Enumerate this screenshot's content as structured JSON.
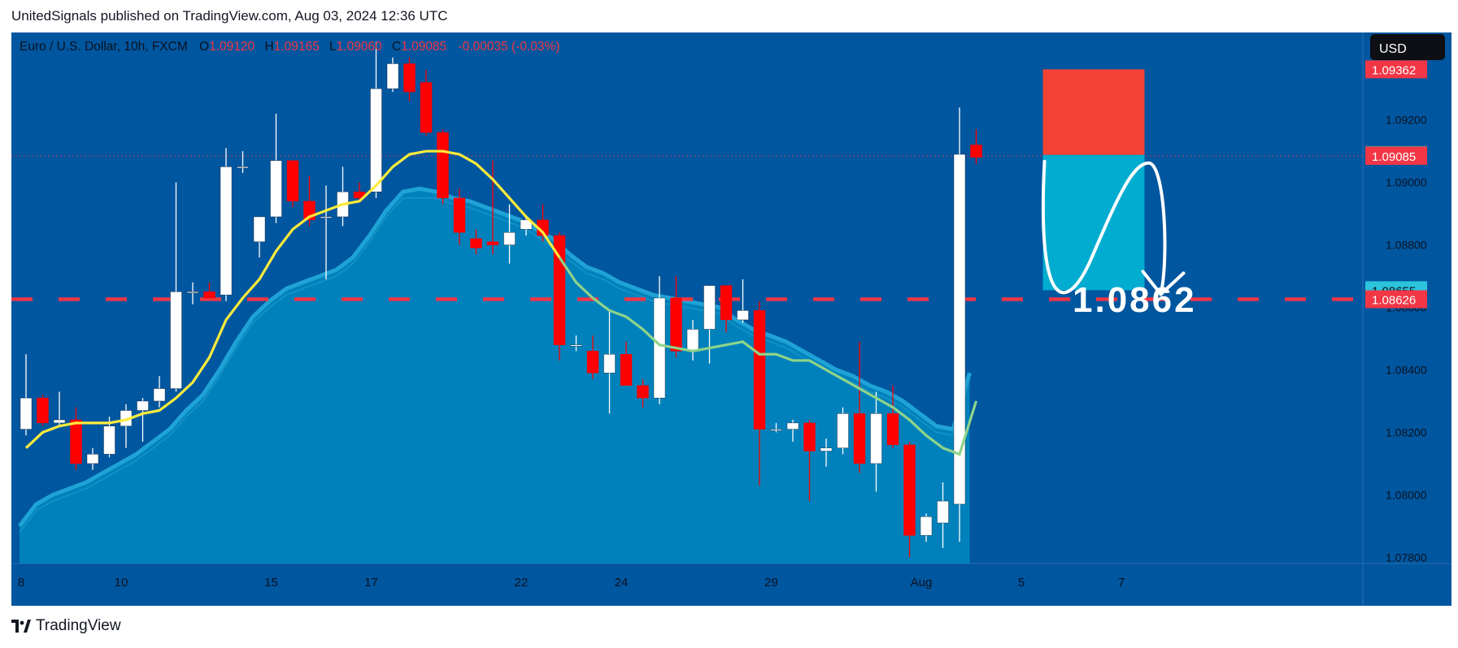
{
  "header": {
    "text": "UnitedSignals published on TradingView.com, Aug 03, 2024 12:36 UTC"
  },
  "footer": {
    "brand": "TradingView"
  },
  "legend": {
    "symbol": "Euro / U.S. Dollar, 10h, FXCM",
    "o_label": "O",
    "o": "1.09120",
    "h_label": "H",
    "h": "1.09165",
    "l_label": "L",
    "l": "1.09060",
    "c_label": "C",
    "c": "1.09085",
    "change": "-0.00035 (-0.03%)"
  },
  "currency_button": "USD",
  "annotation": {
    "target_text": "1.0862"
  },
  "price_tags": [
    {
      "value": "1.09362",
      "price": 1.09362,
      "color": "#f23645"
    },
    {
      "value": "1.09088",
      "price": 1.09088,
      "color": "#787b86"
    },
    {
      "value": "1.09085",
      "price": 1.09085,
      "color": "#f23645"
    },
    {
      "value": "1.08655",
      "price": 1.08655,
      "color": "#2bc4dc"
    },
    {
      "value": "1.08626",
      "price": 1.08626,
      "color": "#f23645"
    }
  ],
  "colors": {
    "background": "#00569f",
    "up_candle": "#ffffff",
    "down_candle": "#ff0000",
    "ema_fast": "#ffeb3b",
    "ema_slow": "#8ed48a",
    "cloud_fill": "#0088c0",
    "cloud_edge": "#1fa3d6",
    "stop_zone": "#f44336",
    "target_zone": "#00acd0",
    "level_line": "#f23645"
  },
  "chart_data": {
    "type": "candlestick",
    "title": "Euro / U.S. Dollar, 10h, FXCM",
    "xlabel": "",
    "ylabel": "",
    "ylim": [
      1.0778,
      1.0948
    ],
    "y_ticks": [
      1.078,
      1.08,
      1.082,
      1.084,
      1.086,
      1.088,
      1.09,
      1.092,
      1.094
    ],
    "x_ticks": [
      {
        "index": 0,
        "label": "8"
      },
      {
        "index": 6,
        "label": "10"
      },
      {
        "index": 15,
        "label": "15"
      },
      {
        "index": 21,
        "label": "17"
      },
      {
        "index": 30,
        "label": "22"
      },
      {
        "index": 36,
        "label": "24"
      },
      {
        "index": 45,
        "label": "29"
      },
      {
        "index": 54,
        "label": "Aug"
      },
      {
        "index": 60,
        "label": "5"
      },
      {
        "index": 66,
        "label": "7"
      }
    ],
    "candles": [
      {
        "o": 1.0821,
        "h": 1.0845,
        "l": 1.0819,
        "c": 1.0831
      },
      {
        "o": 1.0831,
        "h": 1.0832,
        "l": 1.0822,
        "c": 1.0823
      },
      {
        "o": 1.0823,
        "h": 1.0833,
        "l": 1.0822,
        "c": 1.0824
      },
      {
        "o": 1.0824,
        "h": 1.0828,
        "l": 1.0808,
        "c": 1.081
      },
      {
        "o": 1.081,
        "h": 1.0815,
        "l": 1.0808,
        "c": 1.0813
      },
      {
        "o": 1.0813,
        "h": 1.0825,
        "l": 1.0812,
        "c": 1.0822
      },
      {
        "o": 1.0822,
        "h": 1.0829,
        "l": 1.0815,
        "c": 1.0827
      },
      {
        "o": 1.0827,
        "h": 1.0831,
        "l": 1.0817,
        "c": 1.083
      },
      {
        "o": 1.083,
        "h": 1.0838,
        "l": 1.0828,
        "c": 1.0834
      },
      {
        "o": 1.0834,
        "h": 1.09,
        "l": 1.0833,
        "c": 1.0865
      },
      {
        "o": 1.0865,
        "h": 1.0868,
        "l": 1.0861,
        "c": 1.0865
      },
      {
        "o": 1.0865,
        "h": 1.0868,
        "l": 1.0864,
        "c": 1.0863
      },
      {
        "o": 1.0864,
        "h": 1.0911,
        "l": 1.0862,
        "c": 1.0905
      },
      {
        "o": 1.0905,
        "h": 1.091,
        "l": 1.0903,
        "c": 1.0905
      },
      {
        "o": 1.0881,
        "h": 1.0889,
        "l": 1.0876,
        "c": 1.0889
      },
      {
        "o": 1.0889,
        "h": 1.0922,
        "l": 1.0887,
        "c": 1.0907
      },
      {
        "o": 1.0907,
        "h": 1.0907,
        "l": 1.0892,
        "c": 1.0894
      },
      {
        "o": 1.0894,
        "h": 1.0902,
        "l": 1.0886,
        "c": 1.0888
      },
      {
        "o": 1.0889,
        "h": 1.0899,
        "l": 1.0869,
        "c": 1.0889
      },
      {
        "o": 1.0889,
        "h": 1.0905,
        "l": 1.0886,
        "c": 1.0897
      },
      {
        "o": 1.0897,
        "h": 1.09,
        "l": 1.0894,
        "c": 1.0895
      },
      {
        "o": 1.0897,
        "h": 1.0945,
        "l": 1.0895,
        "c": 1.093
      },
      {
        "o": 1.093,
        "h": 1.094,
        "l": 1.0929,
        "c": 1.0938
      },
      {
        "o": 1.0938,
        "h": 1.094,
        "l": 1.0926,
        "c": 1.0929
      },
      {
        "o": 1.0932,
        "h": 1.0936,
        "l": 1.0915,
        "c": 1.0916
      },
      {
        "o": 1.0916,
        "h": 1.0917,
        "l": 1.0893,
        "c": 1.0895
      },
      {
        "o": 1.0895,
        "h": 1.0898,
        "l": 1.088,
        "c": 1.0884
      },
      {
        "o": 1.0882,
        "h": 1.0885,
        "l": 1.0877,
        "c": 1.0879
      },
      {
        "o": 1.0881,
        "h": 1.0907,
        "l": 1.0877,
        "c": 1.088
      },
      {
        "o": 1.088,
        "h": 1.0893,
        "l": 1.0874,
        "c": 1.0884
      },
      {
        "o": 1.0885,
        "h": 1.0889,
        "l": 1.0883,
        "c": 1.0888
      },
      {
        "o": 1.0888,
        "h": 1.0893,
        "l": 1.0881,
        "c": 1.0883
      },
      {
        "o": 1.0883,
        "h": 1.0884,
        "l": 1.0843,
        "c": 1.0848
      },
      {
        "o": 1.0848,
        "h": 1.0851,
        "l": 1.0846,
        "c": 1.0848
      },
      {
        "o": 1.0846,
        "h": 1.0851,
        "l": 1.0837,
        "c": 1.0839
      },
      {
        "o": 1.0839,
        "h": 1.0859,
        "l": 1.0826,
        "c": 1.0845
      },
      {
        "o": 1.0845,
        "h": 1.0849,
        "l": 1.0835,
        "c": 1.0835
      },
      {
        "o": 1.0835,
        "h": 1.0837,
        "l": 1.0828,
        "c": 1.0831
      },
      {
        "o": 1.0831,
        "h": 1.087,
        "l": 1.0829,
        "c": 1.0863
      },
      {
        "o": 1.0863,
        "h": 1.087,
        "l": 1.0844,
        "c": 1.0846
      },
      {
        "o": 1.0846,
        "h": 1.0856,
        "l": 1.0843,
        "c": 1.0853
      },
      {
        "o": 1.0853,
        "h": 1.0866,
        "l": 1.0842,
        "c": 1.0867
      },
      {
        "o": 1.0867,
        "h": 1.0866,
        "l": 1.0852,
        "c": 1.0856
      },
      {
        "o": 1.0856,
        "h": 1.0869,
        "l": 1.0855,
        "c": 1.0859
      },
      {
        "o": 1.0859,
        "h": 1.0862,
        "l": 1.0803,
        "c": 1.0821
      },
      {
        "o": 1.0821,
        "h": 1.0823,
        "l": 1.082,
        "c": 1.0821
      },
      {
        "o": 1.0821,
        "h": 1.0824,
        "l": 1.0817,
        "c": 1.0823
      },
      {
        "o": 1.0823,
        "h": 1.0824,
        "l": 1.0798,
        "c": 1.0814
      },
      {
        "o": 1.0814,
        "h": 1.0818,
        "l": 1.0809,
        "c": 1.0815
      },
      {
        "o": 1.0815,
        "h": 1.0828,
        "l": 1.0813,
        "c": 1.0826
      },
      {
        "o": 1.0826,
        "h": 1.0849,
        "l": 1.0807,
        "c": 1.081
      },
      {
        "o": 1.081,
        "h": 1.0833,
        "l": 1.0801,
        "c": 1.0826
      },
      {
        "o": 1.0826,
        "h": 1.0835,
        "l": 1.0815,
        "c": 1.0816
      },
      {
        "o": 1.0816,
        "h": 1.0817,
        "l": 1.078,
        "c": 1.0787
      },
      {
        "o": 1.0787,
        "h": 1.0794,
        "l": 1.0785,
        "c": 1.0793
      },
      {
        "o": 1.0791,
        "h": 1.0804,
        "l": 1.0783,
        "c": 1.0798
      },
      {
        "o": 1.0797,
        "h": 1.0924,
        "l": 1.0785,
        "c": 1.0909
      },
      {
        "o": 1.0912,
        "h": 1.0917,
        "l": 1.0906,
        "c": 1.0908
      }
    ],
    "ema_fast": [
      1.0815,
      1.082,
      1.0822,
      1.0823,
      1.0823,
      1.0823,
      1.0824,
      1.0826,
      1.0827,
      1.0831,
      1.0836,
      1.0844,
      1.0856,
      1.0863,
      1.0869,
      1.0878,
      1.0885,
      1.0889,
      1.0891,
      1.0893,
      1.0894,
      1.0899,
      1.0905,
      1.0909,
      1.091,
      1.091,
      1.0909,
      1.0906,
      1.0901,
      1.0895,
      1.0889,
      1.0884,
      1.0876,
      1.0868,
      1.0863,
      1.0859,
      1.0857,
      1.0853,
      1.0848,
      1.0847,
      1.0846,
      1.0847,
      1.0848,
      1.0849,
      1.0845,
      1.0845,
      1.0843,
      1.0843,
      1.084,
      1.0837,
      1.0834,
      1.0831,
      1.0828,
      1.0824,
      1.0819,
      1.0815,
      1.0813,
      1.083
    ],
    "cloud_upper": [
      1.079,
      1.0797,
      1.08,
      1.0802,
      1.0804,
      1.0807,
      1.081,
      1.0813,
      1.0817,
      1.0821,
      1.0827,
      1.0832,
      1.084,
      1.0849,
      1.0857,
      1.0862,
      1.0866,
      1.0868,
      1.087,
      1.0872,
      1.0876,
      1.0883,
      1.0891,
      1.0897,
      1.0898,
      1.0897,
      1.0895,
      1.0894,
      1.0892,
      1.089,
      1.0888,
      1.0885,
      1.0882,
      1.0877,
      1.0873,
      1.0871,
      1.0868,
      1.0866,
      1.0864,
      1.0863,
      1.0862,
      1.0861,
      1.086,
      1.0856,
      1.0853,
      1.0851,
      1.0849,
      1.0846,
      1.0843,
      1.084,
      1.0838,
      1.0835,
      1.0833,
      1.083,
      1.0826,
      1.0822,
      1.0821,
      1.0839
    ],
    "cloud_lower": [
      1.0788,
      1.0795,
      1.0798,
      1.08,
      1.0802,
      1.0805,
      1.0808,
      1.0811,
      1.0815,
      1.0819,
      1.0825,
      1.083,
      1.0838,
      1.0847,
      1.0855,
      1.086,
      1.0864,
      1.0866,
      1.0868,
      1.087,
      1.0874,
      1.0881,
      1.0889,
      1.0895,
      1.0895,
      1.0895,
      1.0893,
      1.0892,
      1.089,
      1.0888,
      1.0886,
      1.0883,
      1.0879,
      1.0875,
      1.0871,
      1.0869,
      1.0866,
      1.0864,
      1.0862,
      1.0861,
      1.086,
      1.0859,
      1.0858,
      1.0854,
      1.0851,
      1.0849,
      1.0847,
      1.0844,
      1.0841,
      1.0838,
      1.0836,
      1.0833,
      1.0831,
      1.0828,
      1.0824,
      1.082,
      1.0819,
      1.0837
    ],
    "levels": [
      {
        "name": "",
        "price": 1.08626,
        "style": "dashed"
      },
      {
        "name": "",
        "price": 1.09085,
        "style": "dotted"
      }
    ],
    "position": {
      "type": "short",
      "entry": 1.09088,
      "stop": 1.09362,
      "target": 1.08655,
      "start_index": 61,
      "end_index": 67
    }
  }
}
